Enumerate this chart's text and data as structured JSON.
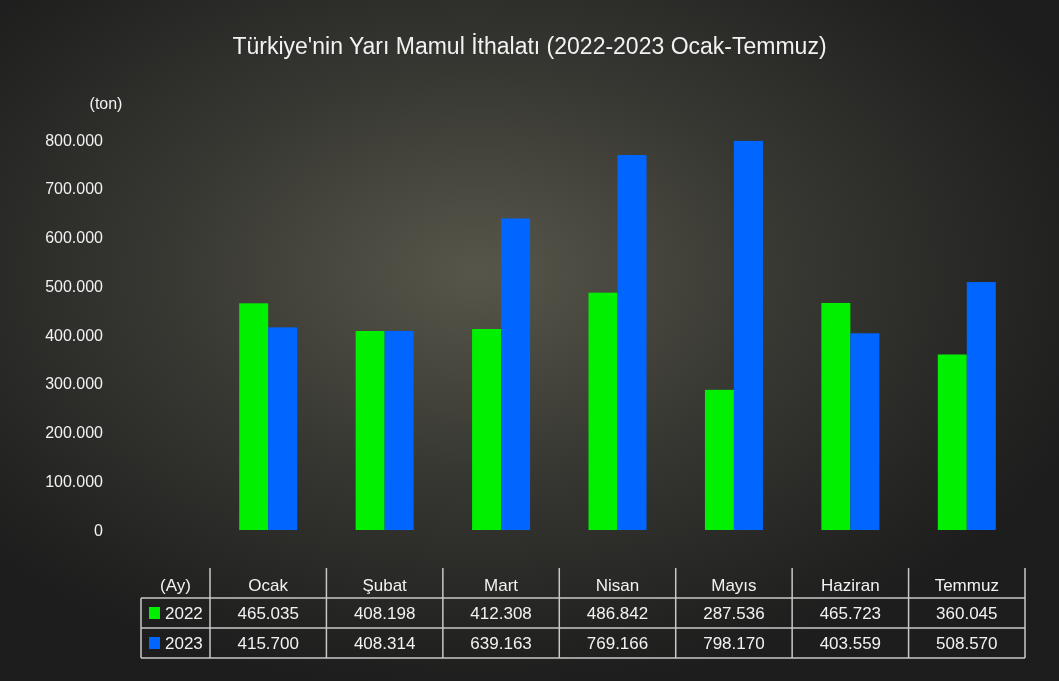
{
  "chart_data": {
    "type": "bar",
    "title": "Türkiye'nin Yarı Mamul İthalatı (2022-2023 Ocak-Temmuz)",
    "ylabel": "(ton)",
    "xlabel": "(Ay)",
    "categories": [
      "Ocak",
      "Şubat",
      "Mart",
      "Nisan",
      "Mayıs",
      "Haziran",
      "Temmuz"
    ],
    "series": [
      {
        "name": "2022",
        "color": "#00f000",
        "values": [
          465035,
          408198,
          412308,
          486842,
          287536,
          465723,
          360045
        ],
        "value_labels": [
          "465.035",
          "408.198",
          "412.308",
          "486.842",
          "287.536",
          "465.723",
          "360.045"
        ]
      },
      {
        "name": "2023",
        "color": "#0066ff",
        "values": [
          415700,
          408314,
          639163,
          769166,
          798170,
          403559,
          508570
        ],
        "value_labels": [
          "415.700",
          "408.314",
          "639.163",
          "769.166",
          "798.170",
          "403.559",
          "508.570"
        ]
      }
    ],
    "ylim": [
      0,
      800000
    ],
    "yticks": [
      0,
      {
        "value": 100000,
        "label": "100.000"
      },
      {
        "value": 200000,
        "label": "200.000"
      },
      {
        "value": 300000,
        "label": "300.000"
      },
      {
        "value": 400000,
        "label": "400.000"
      },
      {
        "value": 500000,
        "label": "500.000"
      },
      {
        "value": 600000,
        "label": "600.000"
      },
      {
        "value": 700000,
        "label": "700.000"
      },
      {
        "value": 800000,
        "label": "800.000"
      }
    ],
    "legend": "bottom"
  }
}
